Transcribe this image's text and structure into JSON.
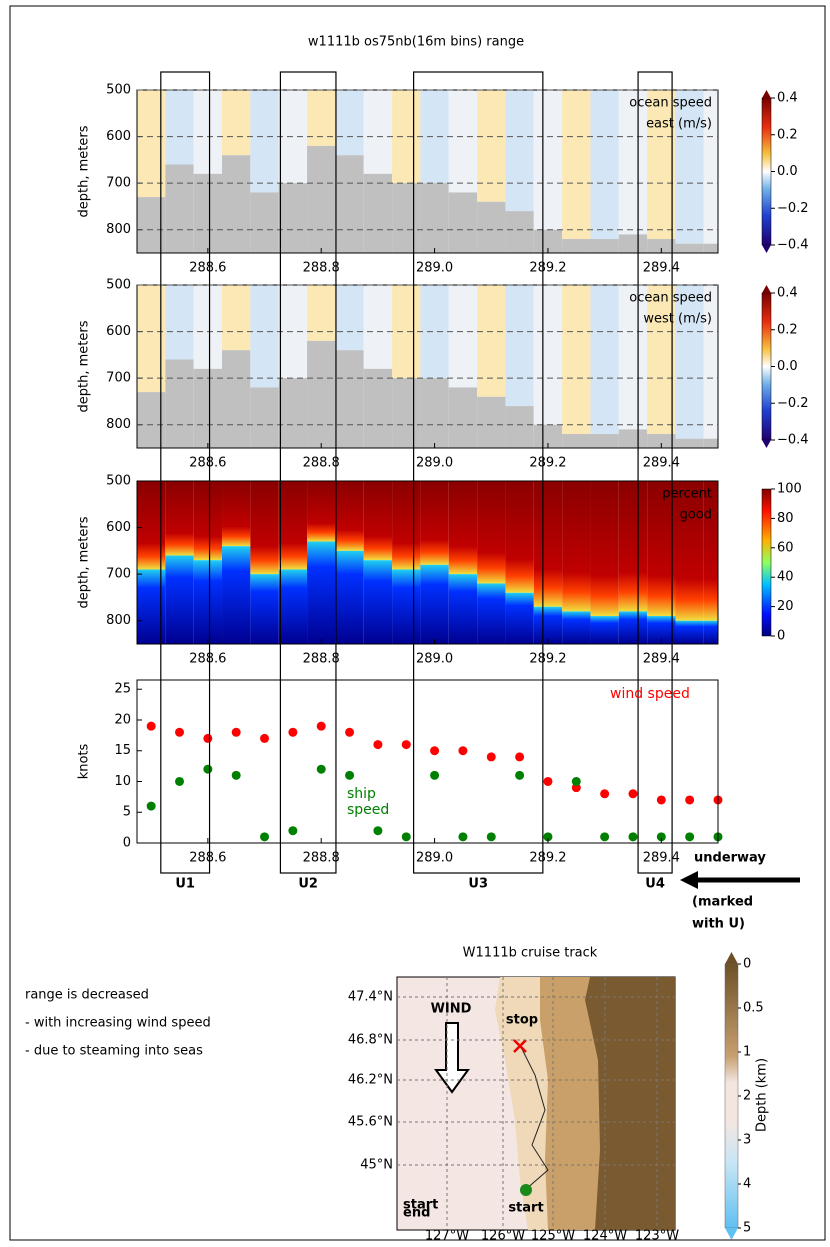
{
  "title": "w1111b os75nb(16m bins) range",
  "chart_data": [
    {
      "type": "velocity",
      "annotation": [
        "ocean speed",
        "east (m/s)"
      ],
      "ylabel": "depth, meters",
      "xlim": [
        288.475,
        289.5
      ],
      "xticks": [
        288.6,
        288.8,
        {
          "value": 289.0,
          "label": "289.0"
        },
        289.2,
        289.4
      ],
      "ylim": [
        500,
        850
      ],
      "y_inverted": true,
      "yticks": [
        500,
        600,
        700,
        800
      ],
      "grid": true,
      "x": [
        288.5,
        288.55,
        288.6,
        288.65,
        288.7,
        288.75,
        288.8,
        288.85,
        288.9,
        288.95,
        289.0,
        289.05,
        289.1,
        289.15,
        289.2,
        289.25,
        289.3,
        289.35,
        289.4,
        289.45,
        289.5
      ],
      "data_depth": [
        730,
        660,
        680,
        640,
        720,
        700,
        620,
        640,
        680,
        700,
        700,
        720,
        740,
        760,
        800,
        820,
        820,
        810,
        820,
        830,
        830
      ],
      "colorbar": {
        "lim": [
          -0.4,
          0.4
        ],
        "ticks": [
          0.4,
          0.2,
          {
            "value": 0,
            "label": "0.0"
          },
          {
            "value": -0.2,
            "label": "−0.2"
          },
          {
            "value": -0.4,
            "label": "−0.4"
          }
        ]
      }
    },
    {
      "type": "velocity",
      "annotation": [
        "ocean speed",
        "west (m/s)"
      ],
      "ylabel": "depth, meters",
      "xlim": [
        288.475,
        289.5
      ],
      "xticks": [
        288.6,
        288.8,
        {
          "value": 289.0,
          "label": "289.0"
        },
        289.2,
        289.4
      ],
      "ylim": [
        500,
        850
      ],
      "y_inverted": true,
      "yticks": [
        500,
        600,
        700,
        800
      ],
      "grid": true,
      "x": [
        288.5,
        288.55,
        288.6,
        288.65,
        288.7,
        288.75,
        288.8,
        288.85,
        288.9,
        288.95,
        289.0,
        289.05,
        289.1,
        289.15,
        289.2,
        289.25,
        289.3,
        289.35,
        289.4,
        289.45,
        289.5
      ],
      "data_depth": [
        730,
        660,
        680,
        640,
        720,
        700,
        620,
        640,
        680,
        700,
        700,
        720,
        740,
        760,
        800,
        820,
        820,
        810,
        820,
        830,
        830
      ],
      "colorbar": {
        "lim": [
          -0.4,
          0.4
        ],
        "ticks": [
          0.4,
          0.2,
          {
            "value": 0,
            "label": "0.0"
          },
          {
            "value": -0.2,
            "label": "−0.2"
          },
          {
            "value": -0.4,
            "label": "−0.4"
          }
        ]
      }
    },
    {
      "type": "percent",
      "annotation": [
        "percent",
        "good"
      ],
      "ylabel": "depth, meters",
      "xlim": [
        288.475,
        289.5
      ],
      "xticks": [
        288.6,
        288.8,
        {
          "value": 289.0,
          "label": "289.0"
        },
        289.2,
        289.4
      ],
      "ylim": [
        500,
        850
      ],
      "y_inverted": true,
      "yticks": [
        500,
        600,
        700,
        800
      ],
      "grid": false,
      "x": [
        288.5,
        288.55,
        288.6,
        288.65,
        288.7,
        288.75,
        288.8,
        288.85,
        288.9,
        288.95,
        289.0,
        289.05,
        289.1,
        289.15,
        289.2,
        289.25,
        289.3,
        289.35,
        289.4,
        289.45,
        289.5
      ],
      "data_depth": [
        690,
        660,
        670,
        640,
        700,
        690,
        630,
        650,
        670,
        690,
        680,
        700,
        720,
        740,
        770,
        780,
        790,
        780,
        790,
        800,
        800
      ],
      "colorbar": {
        "lim": [
          0,
          100
        ],
        "ticks": [
          100,
          80,
          60,
          40,
          20,
          0
        ]
      }
    },
    {
      "type": "scatter",
      "ylabel": "knots",
      "xlim": [
        288.475,
        289.5
      ],
      "xticks": [
        288.6,
        288.8,
        {
          "value": 289.0,
          "label": "289.0"
        },
        289.2,
        289.4
      ],
      "ylim": [
        0,
        26.5
      ],
      "yticks": [
        0,
        5,
        10,
        15,
        20,
        25
      ],
      "grid": false,
      "x": [
        288.5,
        288.55,
        288.6,
        288.65,
        288.7,
        288.75,
        288.8,
        288.85,
        288.9,
        288.95,
        289.0,
        289.05,
        289.1,
        289.15,
        289.2,
        289.25,
        289.3,
        289.35,
        289.4,
        289.45,
        289.5
      ],
      "series": [
        {
          "name": "wind speed",
          "color": "#ff0000",
          "values": [
            19,
            18,
            17,
            18,
            17,
            18,
            19,
            18,
            16,
            16,
            15,
            15,
            14,
            14,
            10,
            9,
            8,
            8,
            7,
            7,
            7
          ]
        },
        {
          "name": "ship speed",
          "color": "#008000",
          "values": [
            6,
            10,
            12,
            11,
            1,
            2,
            12,
            11,
            2,
            1,
            11,
            1,
            1,
            11,
            1,
            10,
            1,
            1,
            1,
            1,
            1
          ]
        }
      ]
    }
  ],
  "underway": [
    {
      "label": "U1",
      "x": [
        288.517,
        288.603
      ]
    },
    {
      "label": "U2",
      "x": [
        288.728,
        288.826
      ]
    },
    {
      "label": "U3",
      "x": [
        288.963,
        289.191
      ]
    },
    {
      "label": "U4",
      "x": [
        289.359,
        289.419
      ]
    }
  ],
  "underway_note": [
    "underway",
    "(marked",
    "with U)"
  ],
  "notes": [
    "range is decreased",
    "- with increasing wind speed",
    "- due to steaming into seas"
  ],
  "map": {
    "title": "W1111b cruise track",
    "lat_labels": [
      "47.4°N",
      "46.8°N",
      "46.2°N",
      "45.6°N",
      "45°N"
    ],
    "lon_labels": [
      "127°W",
      "126°W",
      "125°W",
      "124°W",
      "123°W"
    ],
    "wind": "WIND",
    "stop": "stop",
    "start": "start",
    "legend": [
      "start",
      "end"
    ],
    "colorbar_label": "Depth (km)",
    "colorbar_ticks": [
      0,
      0.5,
      1,
      2,
      3,
      4,
      5
    ]
  }
}
